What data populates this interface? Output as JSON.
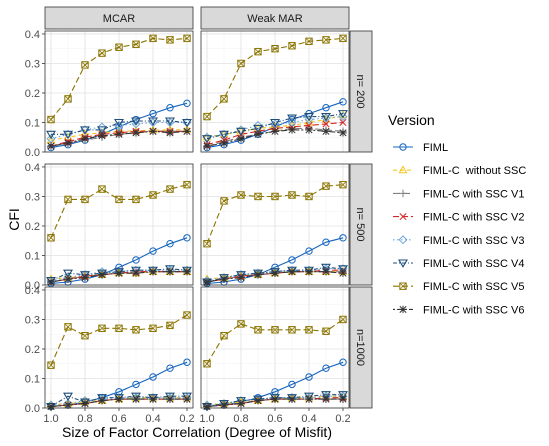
{
  "chart_data": {
    "type": "line",
    "xlabel": "Size of Factor Correlation (Degree of Misfit)",
    "ylabel": "CFI",
    "x": [
      1.0,
      0.9,
      0.8,
      0.7,
      0.6,
      0.5,
      0.4,
      0.3,
      0.2
    ],
    "x_ticks": [
      "1.0",
      "0.8",
      "0.6",
      "0.4",
      "0.2"
    ],
    "x_reversed": true,
    "ylim": [
      0,
      0.41
    ],
    "y_ticks": [
      "0.0",
      "0.1",
      "0.2",
      "0.3",
      "0.4"
    ],
    "grid": true,
    "legend_position": "right",
    "legend_title": "Version",
    "columns": [
      "MCAR",
      "Weak MAR"
    ],
    "rows": [
      "n= 200",
      "n= 500",
      "n=1000"
    ],
    "series_styles": [
      {
        "name": "FIML",
        "color": "#1565c0",
        "marker": "circle",
        "dash": ""
      },
      {
        "name": "FIML-C  without SSC",
        "color": "#f5c518",
        "marker": "triangle-up",
        "dash": "4,3"
      },
      {
        "name": "FIML-C with SSC V1",
        "color": "#808080",
        "marker": "plus",
        "dash": "7,3"
      },
      {
        "name": "FIML-C with SSC V2",
        "color": "#d62728",
        "marker": "cross",
        "dash": "6,3"
      },
      {
        "name": "FIML-C with SSC V3",
        "color": "#6fa8dc",
        "marker": "diamond",
        "dash": "1.5,2.5"
      },
      {
        "name": "FIML-C with SSC V4",
        "color": "#1f4e79",
        "marker": "triangle-down",
        "dash": "4,2,1,2"
      },
      {
        "name": "FIML-C with SSC V5",
        "color": "#8b7500",
        "marker": "square-x",
        "dash": "6,3"
      },
      {
        "name": "FIML-C with SSC V6",
        "color": "#333333",
        "marker": "asterisk",
        "dash": "2,2,6,2"
      }
    ],
    "panels": [
      {
        "row": 0,
        "col": 0,
        "series": [
          {
            "name": "FIML",
            "values": [
              0.015,
              0.025,
              0.04,
              0.06,
              0.085,
              0.11,
              0.13,
              0.15,
              0.165
            ]
          },
          {
            "name": "FIML-C  without SSC",
            "values": [
              0.04,
              0.05,
              0.06,
              0.065,
              0.07,
              0.072,
              0.074,
              0.075,
              0.076
            ]
          },
          {
            "name": "FIML-C with SSC V1",
            "values": [
              0.02,
              0.03,
              0.04,
              0.05,
              0.06,
              0.065,
              0.07,
              0.07,
              0.07
            ]
          },
          {
            "name": "FIML-C with SSC V2",
            "values": [
              0.02,
              0.035,
              0.05,
              0.06,
              0.065,
              0.07,
              0.07,
              0.07,
              0.07
            ]
          },
          {
            "name": "FIML-C with SSC V3",
            "values": [
              0.045,
              0.06,
              0.075,
              0.085,
              0.09,
              0.095,
              0.1,
              0.1,
              0.1
            ]
          },
          {
            "name": "FIML-C with SSC V4",
            "values": [
              0.06,
              0.06,
              0.075,
              0.075,
              0.1,
              0.105,
              0.105,
              0.105,
              0.1
            ]
          },
          {
            "name": "FIML-C with SSC V5",
            "values": [
              0.11,
              0.18,
              0.295,
              0.335,
              0.355,
              0.365,
              0.385,
              0.38,
              0.385
            ]
          },
          {
            "name": "FIML-C with SSC V6",
            "values": [
              0.02,
              0.03,
              0.045,
              0.055,
              0.06,
              0.065,
              0.07,
              0.065,
              0.07
            ]
          }
        ]
      },
      {
        "row": 0,
        "col": 1,
        "series": [
          {
            "name": "FIML",
            "values": [
              0.015,
              0.025,
              0.04,
              0.06,
              0.085,
              0.11,
              0.13,
              0.15,
              0.17
            ]
          },
          {
            "name": "FIML-C  without SSC",
            "values": [
              0.05,
              0.06,
              0.07,
              0.08,
              0.085,
              0.09,
              0.1,
              0.11,
              0.125
            ]
          },
          {
            "name": "FIML-C with SSC V1",
            "values": [
              0.02,
              0.035,
              0.05,
              0.06,
              0.07,
              0.08,
              0.08,
              0.075,
              0.07
            ]
          },
          {
            "name": "FIML-C with SSC V2",
            "values": [
              0.025,
              0.04,
              0.06,
              0.07,
              0.08,
              0.085,
              0.09,
              0.095,
              0.1
            ]
          },
          {
            "name": "FIML-C with SSC V3",
            "values": [
              0.05,
              0.06,
              0.075,
              0.09,
              0.095,
              0.1,
              0.11,
              0.115,
              0.12
            ]
          },
          {
            "name": "FIML-C with SSC V4",
            "values": [
              0.045,
              0.06,
              0.07,
              0.08,
              0.1,
              0.115,
              0.12,
              0.12,
              0.13
            ]
          },
          {
            "name": "FIML-C with SSC V5",
            "values": [
              0.12,
              0.18,
              0.3,
              0.34,
              0.35,
              0.36,
              0.375,
              0.38,
              0.385
            ]
          },
          {
            "name": "FIML-C with SSC V6",
            "values": [
              0.02,
              0.03,
              0.045,
              0.06,
              0.07,
              0.075,
              0.075,
              0.07,
              0.065
            ]
          }
        ]
      },
      {
        "row": 1,
        "col": 0,
        "series": [
          {
            "name": "FIML",
            "values": [
              0.005,
              0.01,
              0.02,
              0.035,
              0.06,
              0.085,
              0.115,
              0.14,
              0.16
            ]
          },
          {
            "name": "FIML-C  without SSC",
            "values": [
              0.02,
              0.025,
              0.03,
              0.035,
              0.04,
              0.04,
              0.045,
              0.045,
              0.045
            ]
          },
          {
            "name": "FIML-C with SSC V1",
            "values": [
              0.01,
              0.02,
              0.03,
              0.035,
              0.04,
              0.045,
              0.045,
              0.045,
              0.045
            ]
          },
          {
            "name": "FIML-C with SSC V2",
            "values": [
              0.01,
              0.02,
              0.03,
              0.035,
              0.04,
              0.045,
              0.045,
              0.045,
              0.045
            ]
          },
          {
            "name": "FIML-C with SSC V3",
            "values": [
              0.015,
              0.025,
              0.035,
              0.045,
              0.045,
              0.05,
              0.05,
              0.05,
              0.05
            ]
          },
          {
            "name": "FIML-C with SSC V4",
            "values": [
              0.015,
              0.04,
              0.035,
              0.04,
              0.045,
              0.05,
              0.05,
              0.055,
              0.05
            ]
          },
          {
            "name": "FIML-C with SSC V5",
            "values": [
              0.16,
              0.29,
              0.29,
              0.325,
              0.29,
              0.29,
              0.305,
              0.325,
              0.34
            ]
          },
          {
            "name": "FIML-C with SSC V6",
            "values": [
              0.01,
              0.02,
              0.025,
              0.035,
              0.04,
              0.04,
              0.045,
              0.045,
              0.045
            ]
          }
        ]
      },
      {
        "row": 1,
        "col": 1,
        "series": [
          {
            "name": "FIML",
            "values": [
              0.005,
              0.01,
              0.02,
              0.035,
              0.06,
              0.085,
              0.115,
              0.145,
              0.16
            ]
          },
          {
            "name": "FIML-C  without SSC",
            "values": [
              0.02,
              0.025,
              0.03,
              0.035,
              0.04,
              0.045,
              0.045,
              0.045,
              0.045
            ]
          },
          {
            "name": "FIML-C with SSC V1",
            "values": [
              0.01,
              0.02,
              0.03,
              0.035,
              0.04,
              0.045,
              0.045,
              0.045,
              0.045
            ]
          },
          {
            "name": "FIML-C with SSC V2",
            "values": [
              0.01,
              0.02,
              0.03,
              0.035,
              0.04,
              0.045,
              0.045,
              0.05,
              0.05
            ]
          },
          {
            "name": "FIML-C with SSC V3",
            "values": [
              0.015,
              0.025,
              0.035,
              0.04,
              0.045,
              0.05,
              0.05,
              0.055,
              0.055
            ]
          },
          {
            "name": "FIML-C with SSC V4",
            "values": [
              0.01,
              0.025,
              0.035,
              0.04,
              0.045,
              0.05,
              0.05,
              0.06,
              0.055
            ]
          },
          {
            "name": "FIML-C with SSC V5",
            "values": [
              0.14,
              0.285,
              0.305,
              0.3,
              0.3,
              0.305,
              0.3,
              0.335,
              0.34
            ]
          },
          {
            "name": "FIML-C with SSC V6",
            "values": [
              0.01,
              0.02,
              0.025,
              0.035,
              0.04,
              0.045,
              0.045,
              0.045,
              0.04
            ]
          }
        ]
      },
      {
        "row": 2,
        "col": 0,
        "series": [
          {
            "name": "FIML",
            "values": [
              0.005,
              0.01,
              0.02,
              0.035,
              0.055,
              0.08,
              0.105,
              0.135,
              0.155
            ]
          },
          {
            "name": "FIML-C  without SSC",
            "values": [
              0.01,
              0.015,
              0.02,
              0.025,
              0.03,
              0.035,
              0.035,
              0.035,
              0.035
            ]
          },
          {
            "name": "FIML-C with SSC V1",
            "values": [
              0.005,
              0.01,
              0.015,
              0.025,
              0.03,
              0.03,
              0.03,
              0.03,
              0.03
            ]
          },
          {
            "name": "FIML-C with SSC V2",
            "values": [
              0.005,
              0.01,
              0.015,
              0.025,
              0.03,
              0.03,
              0.03,
              0.03,
              0.03
            ]
          },
          {
            "name": "FIML-C with SSC V3",
            "values": [
              0.01,
              0.015,
              0.025,
              0.03,
              0.035,
              0.035,
              0.035,
              0.035,
              0.035
            ]
          },
          {
            "name": "FIML-C with SSC V4",
            "values": [
              0.005,
              0.04,
              0.02,
              0.035,
              0.035,
              0.04,
              0.035,
              0.04,
              0.04
            ]
          },
          {
            "name": "FIML-C with SSC V5",
            "values": [
              0.145,
              0.275,
              0.245,
              0.27,
              0.27,
              0.265,
              0.27,
              0.28,
              0.315
            ]
          },
          {
            "name": "FIML-C with SSC V6",
            "values": [
              0.005,
              0.01,
              0.015,
              0.025,
              0.03,
              0.03,
              0.03,
              0.03,
              0.03
            ]
          }
        ]
      },
      {
        "row": 2,
        "col": 1,
        "series": [
          {
            "name": "FIML",
            "values": [
              0.005,
              0.01,
              0.02,
              0.035,
              0.055,
              0.08,
              0.105,
              0.135,
              0.155
            ]
          },
          {
            "name": "FIML-C  without SSC",
            "values": [
              0.01,
              0.015,
              0.02,
              0.025,
              0.03,
              0.035,
              0.035,
              0.04,
              0.04
            ]
          },
          {
            "name": "FIML-C with SSC V1",
            "values": [
              0.005,
              0.01,
              0.015,
              0.025,
              0.03,
              0.03,
              0.03,
              0.03,
              0.03
            ]
          },
          {
            "name": "FIML-C with SSC V2",
            "values": [
              0.005,
              0.01,
              0.015,
              0.025,
              0.03,
              0.03,
              0.03,
              0.035,
              0.035
            ]
          },
          {
            "name": "FIML-C with SSC V3",
            "values": [
              0.01,
              0.015,
              0.025,
              0.03,
              0.035,
              0.035,
              0.035,
              0.04,
              0.04
            ]
          },
          {
            "name": "FIML-C with SSC V4",
            "values": [
              0.005,
              0.015,
              0.025,
              0.03,
              0.035,
              0.035,
              0.04,
              0.045,
              0.045
            ]
          },
          {
            "name": "FIML-C with SSC V5",
            "values": [
              0.15,
              0.245,
              0.285,
              0.265,
              0.265,
              0.265,
              0.265,
              0.26,
              0.3
            ]
          },
          {
            "name": "FIML-C with SSC V6",
            "values": [
              0.005,
              0.01,
              0.015,
              0.025,
              0.03,
              0.03,
              0.03,
              0.03,
              0.03
            ]
          }
        ]
      }
    ]
  }
}
